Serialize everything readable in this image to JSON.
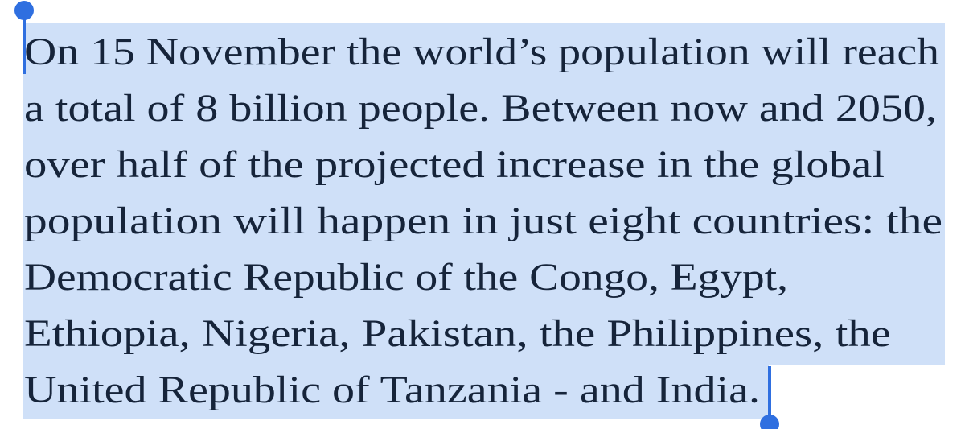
{
  "paragraph": {
    "lines": [
      "On 15 November the world’s population will reach",
      "a total of 8 billion people. Between now and 2050,",
      "over half of the projected increase in the global",
      "population will happen in just eight countries: the",
      "Democratic Republic of the Congo, Egypt,",
      "Ethiopia, Nigeria, Pakistan, the Philippines, the",
      "United Republic of Tanzania - and India."
    ]
  }
}
